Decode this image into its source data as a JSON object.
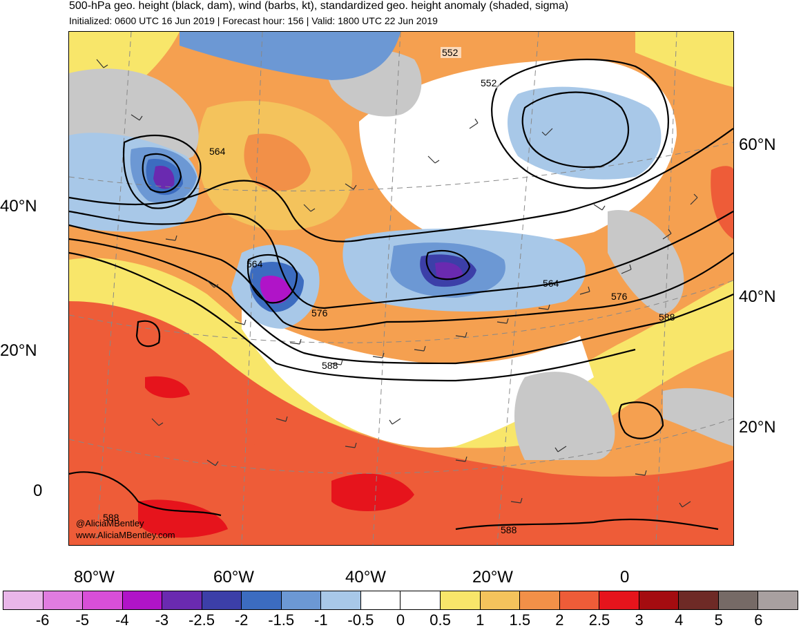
{
  "header": {
    "title": "500-hPa geo. height (black, dam), wind (barbs, kt), standardized geo. height anomaly (shaded, sigma)",
    "subtitle": "Initialized: 0600 UTC 16 Jun 2019 | Forecast hour: 156 | Valid: 1800 UTC 22 Jun 2019"
  },
  "map": {
    "lat_labels_left": [
      "40°N",
      "20°N",
      "0"
    ],
    "lat_labels_right": [
      "60°N",
      "40°N",
      "20°N"
    ],
    "lon_labels": [
      "80°W",
      "60°W",
      "40°W",
      "20°W",
      "0"
    ],
    "contour_labels": [
      "552",
      "552",
      "564",
      "564",
      "564",
      "576",
      "576",
      "588",
      "588",
      "588",
      "588"
    ],
    "credit": [
      "@AliciaMBentley",
      "www.AliciaMBentley.com"
    ]
  },
  "colorbar": {
    "ticks": [
      "-6",
      "-5",
      "-4",
      "-3",
      "-2.5",
      "-2",
      "-1.5",
      "-1",
      "-0.5",
      "0",
      "0.5",
      "1",
      "1.5",
      "2",
      "2.5",
      "3",
      "4",
      "5",
      "6"
    ],
    "colors": [
      "#e9b6e9",
      "#e07ce0",
      "#d84fd8",
      "#b014c8",
      "#6a2ab0",
      "#3c3fa8",
      "#3c6cc0",
      "#6c98d4",
      "#a8c8e8",
      "#ffffff",
      "#ffffff",
      "#f8e66a",
      "#f4c35c",
      "#f29048",
      "#ee5c38",
      "#e6141c",
      "#a40c10",
      "#6e2a26",
      "#766a66",
      "#a8a0a0"
    ]
  }
}
